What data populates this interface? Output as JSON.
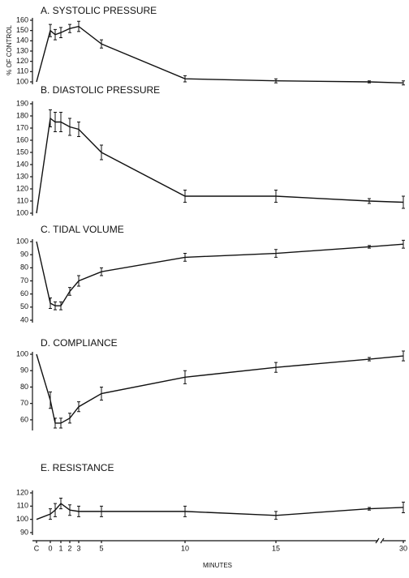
{
  "chart_data": [
    {
      "type": "line",
      "title": "A. SYSTOLIC PRESSURE",
      "ylabel": "% OF CONTROL",
      "values": [
        100,
        150,
        146,
        148,
        152,
        154,
        137,
        103,
        101,
        100,
        99
      ],
      "errors": [
        0,
        6,
        5,
        5,
        4,
        5,
        4,
        3,
        2,
        1,
        2
      ],
      "ylim": [
        100,
        160
      ],
      "yticks": [
        100,
        110,
        120,
        130,
        140,
        150,
        160
      ]
    },
    {
      "type": "line",
      "title": "B. DIASTOLIC PRESSURE",
      "values": [
        100,
        178,
        175,
        175,
        171,
        169,
        150,
        114,
        114,
        110,
        109
      ],
      "errors": [
        0,
        7,
        8,
        8,
        7,
        6,
        6,
        5,
        5,
        2,
        5
      ],
      "ylim": [
        100,
        190
      ],
      "yticks": [
        100,
        110,
        120,
        130,
        140,
        150,
        160,
        170,
        180,
        190
      ]
    },
    {
      "type": "line",
      "title": "C. TIDAL VOLUME",
      "values": [
        100,
        53,
        51,
        51,
        62,
        70,
        77,
        88,
        91,
        96,
        98
      ],
      "errors": [
        0,
        4,
        3,
        3,
        3,
        4,
        3,
        3,
        3,
        1,
        3
      ],
      "ylim": [
        40,
        100
      ],
      "yticks": [
        40,
        50,
        60,
        70,
        80,
        90,
        100
      ]
    },
    {
      "type": "line",
      "title": "D. COMPLIANCE",
      "values": [
        100,
        72,
        58,
        58,
        61,
        68,
        76,
        86,
        92,
        97,
        99
      ],
      "errors": [
        0,
        5,
        3,
        3,
        3,
        3,
        4,
        4,
        3,
        1,
        3
      ],
      "ylim": [
        55,
        100
      ],
      "yticks": [
        60,
        70,
        80,
        90,
        100
      ]
    },
    {
      "type": "line",
      "title": "E. RESISTANCE",
      "xlabel": "MINUTES",
      "categories": [
        "C",
        "0",
        null,
        "1",
        "2",
        "3",
        "5",
        "10",
        "15",
        null,
        "30"
      ],
      "values": [
        100,
        104,
        107,
        112,
        107,
        106,
        106,
        106,
        103,
        108,
        109
      ],
      "errors": [
        0,
        4,
        5,
        4,
        4,
        4,
        4,
        4,
        3,
        1,
        4
      ],
      "ylim": [
        90,
        120
      ],
      "yticks": [
        90,
        100,
        110,
        120
      ]
    }
  ]
}
